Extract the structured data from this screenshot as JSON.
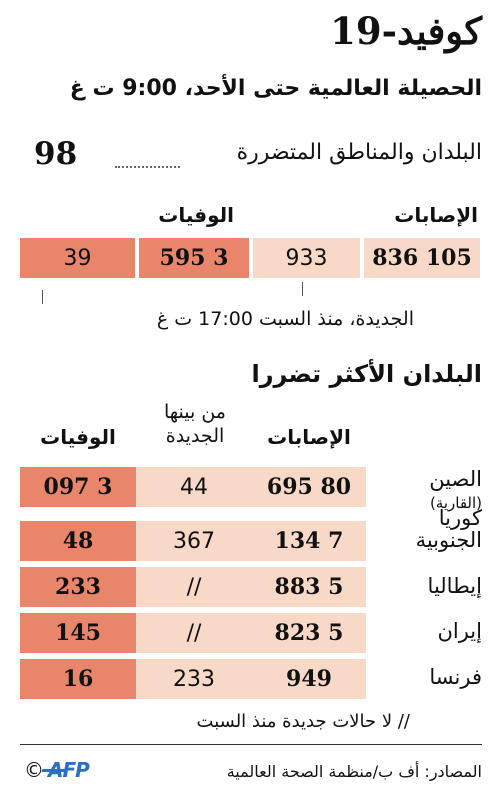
{
  "title": "كوفيد-19",
  "subtitle": "الحصيلة العالمية حتى الأحد، 9:00 ت غ",
  "countries": {
    "label": "البلدان والمناطق المتضررة",
    "value": "98"
  },
  "global": {
    "cases_header": "الإصابات",
    "deaths_header": "الوفيات",
    "cases_total": "105 836",
    "cases_new": "933",
    "deaths_total": "3 595",
    "deaths_new": "39",
    "new_note": "الجديدة، منذ السبت 17:00 ت غ"
  },
  "most_affected": {
    "title": "البلدان الأكثر تضررا",
    "col_cases": "الإصابات",
    "col_new": "من بينها الجديدة",
    "col_deaths": "الوفيات",
    "rows": [
      {
        "country": "الصين",
        "qualifier": "(القارية)",
        "cases": "80 695",
        "new": "44",
        "deaths": "3 097"
      },
      {
        "country": "كوريا الجنوبية",
        "qualifier": "",
        "cases": "7 134",
        "new": "367",
        "deaths": "48"
      },
      {
        "country": "إيطاليا",
        "qualifier": "",
        "cases": "5 883",
        "new": "//",
        "deaths": "233"
      },
      {
        "country": "إيران",
        "qualifier": "",
        "cases": "5 823",
        "new": "//",
        "deaths": "145"
      },
      {
        "country": "فرنسا",
        "qualifier": "",
        "cases": "949",
        "new": "233",
        "deaths": "16"
      }
    ]
  },
  "footnote": "// لا حالات جديدة منذ السبت",
  "sources": "المصادر: أف ب/منظمة الصحة العالمية",
  "copyright": "©",
  "logo_text": "AFP",
  "colors": {
    "dark": "#e9856a",
    "light": "#f8d9c7",
    "logo": "#2a6fc4"
  }
}
